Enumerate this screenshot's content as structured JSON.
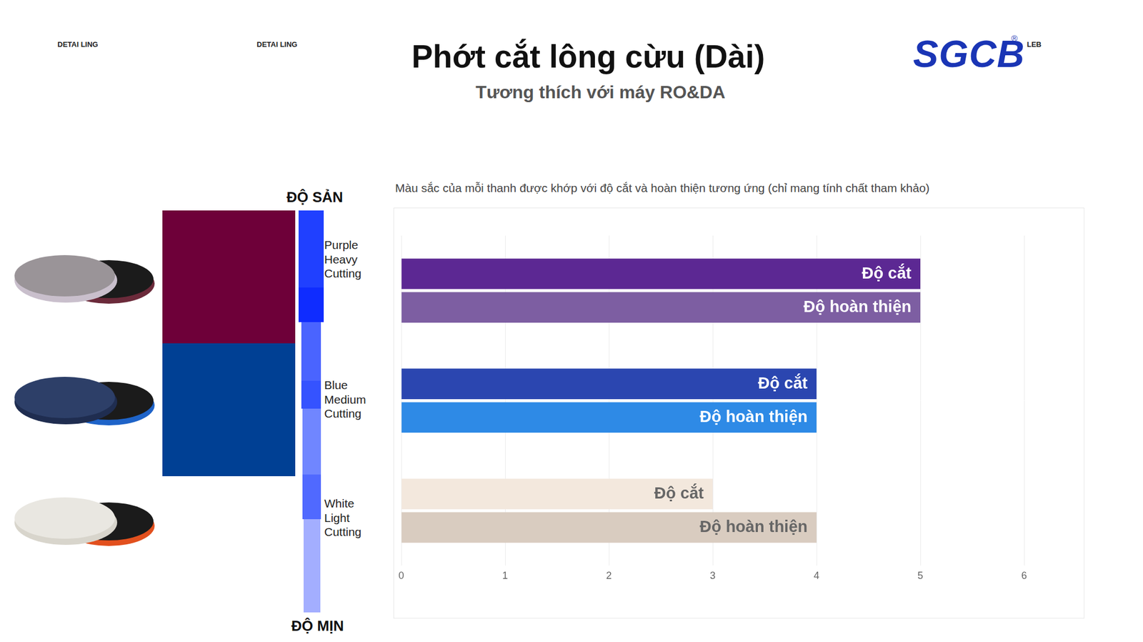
{
  "header": {
    "title": "Phớt cắt lông cừu (Dài)",
    "subtitle": "Tương thích với máy RO&DA",
    "corner_texts": [
      "DETAI LING",
      "DETAI LING"
    ],
    "logo": "SGCB",
    "logo_mark": "®",
    "logo_suffix": "LEB"
  },
  "scale": {
    "top": "ĐỘ SẢN",
    "bottom": "ĐỘ MỊN"
  },
  "chart_data": {
    "type": "bar",
    "orientation": "horizontal",
    "subtitle": "Màu sắc của mỗi thanh được khớp với độ cắt và hoàn thiện tương ứng (chỉ mang tính chất tham khảo)",
    "categories": [
      "Purple Heavy Cutting",
      "Blue Medium Cutting",
      "White Light Cutting"
    ],
    "series": [
      {
        "name": "Độ cắt",
        "colors": [
          "#5c2893",
          "#2b46b0",
          "#f3e8dd"
        ],
        "values": [
          5,
          4,
          3
        ]
      },
      {
        "name": "Độ hoàn thiện",
        "colors": [
          "#7d5ea2",
          "#2e8ae6",
          "#d9ccc0"
        ],
        "values": [
          5,
          4,
          4
        ]
      }
    ],
    "xlim": [
      0,
      6
    ],
    "xticks": [
      0,
      1,
      2,
      3,
      4,
      5,
      6
    ],
    "grid": true,
    "tick_labels": "x"
  }
}
